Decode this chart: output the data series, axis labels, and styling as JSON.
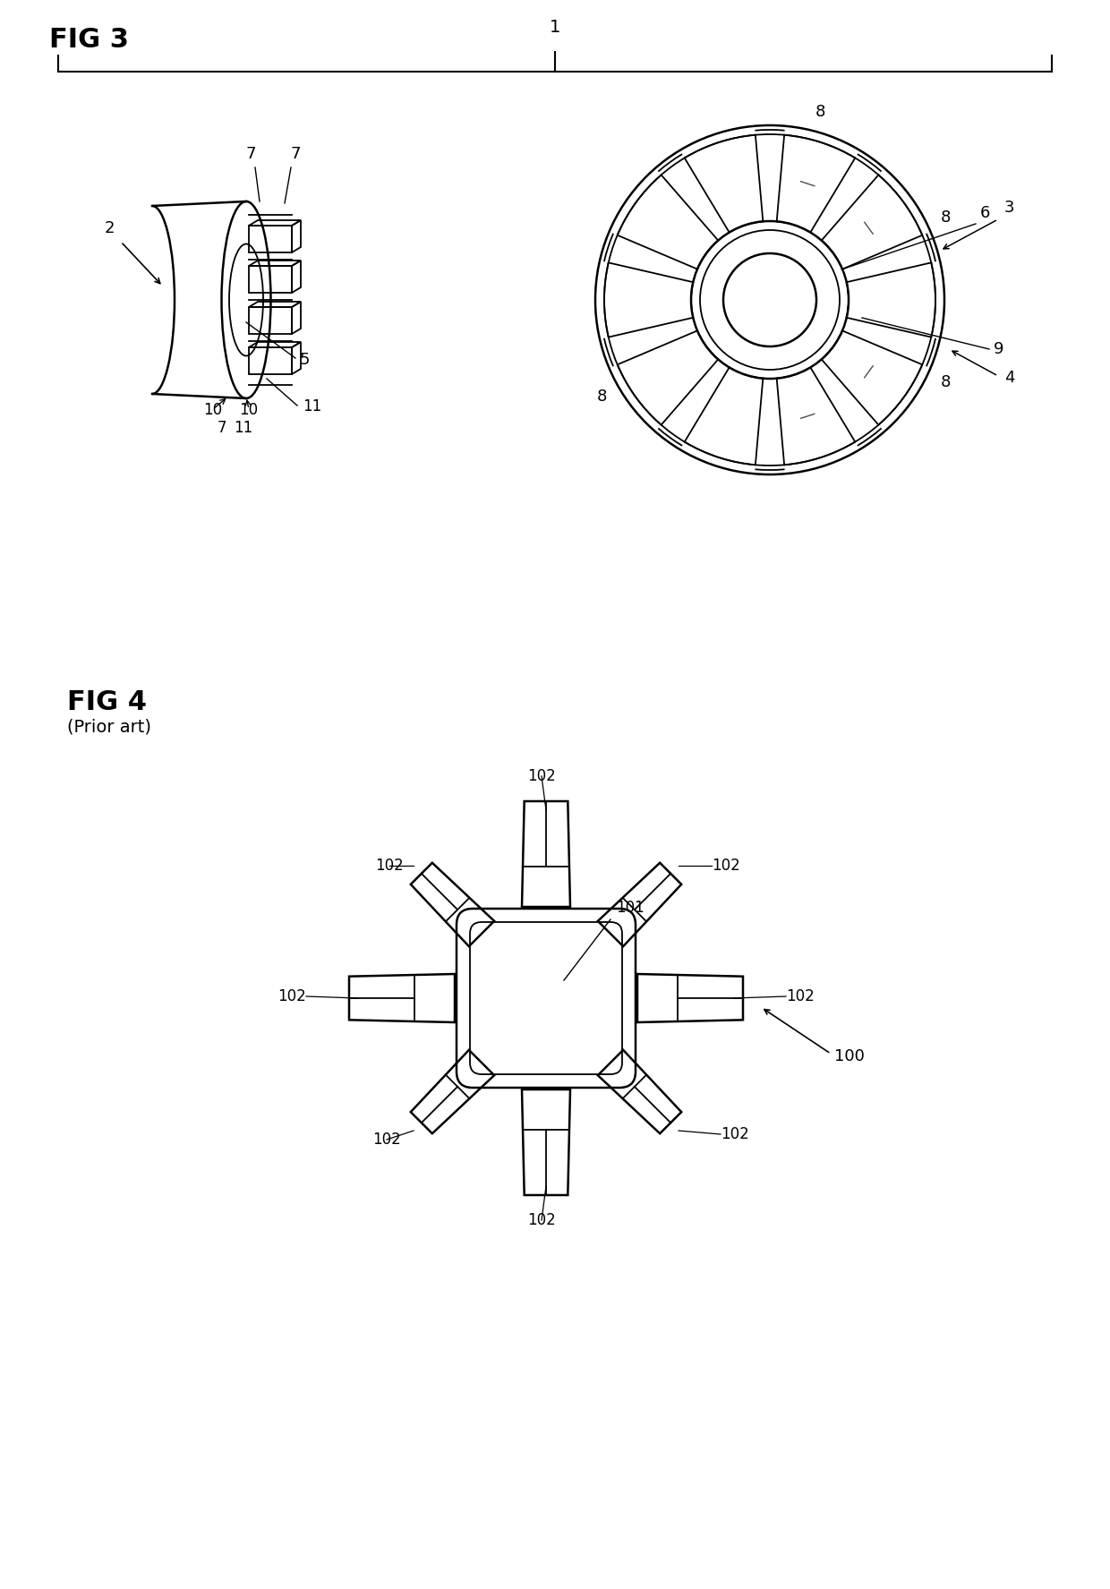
{
  "bg_color": "#ffffff",
  "line_color": "#000000",
  "fig3_label": "FIG 3",
  "fig4_label": "FIG 4",
  "fig4_sublabel": "(Prior art)",
  "bracket_label": "1",
  "font_size_title": 22,
  "font_size_label": 14,
  "font_size_small": 13,
  "lw": 1.8,
  "lw_thin": 1.3
}
